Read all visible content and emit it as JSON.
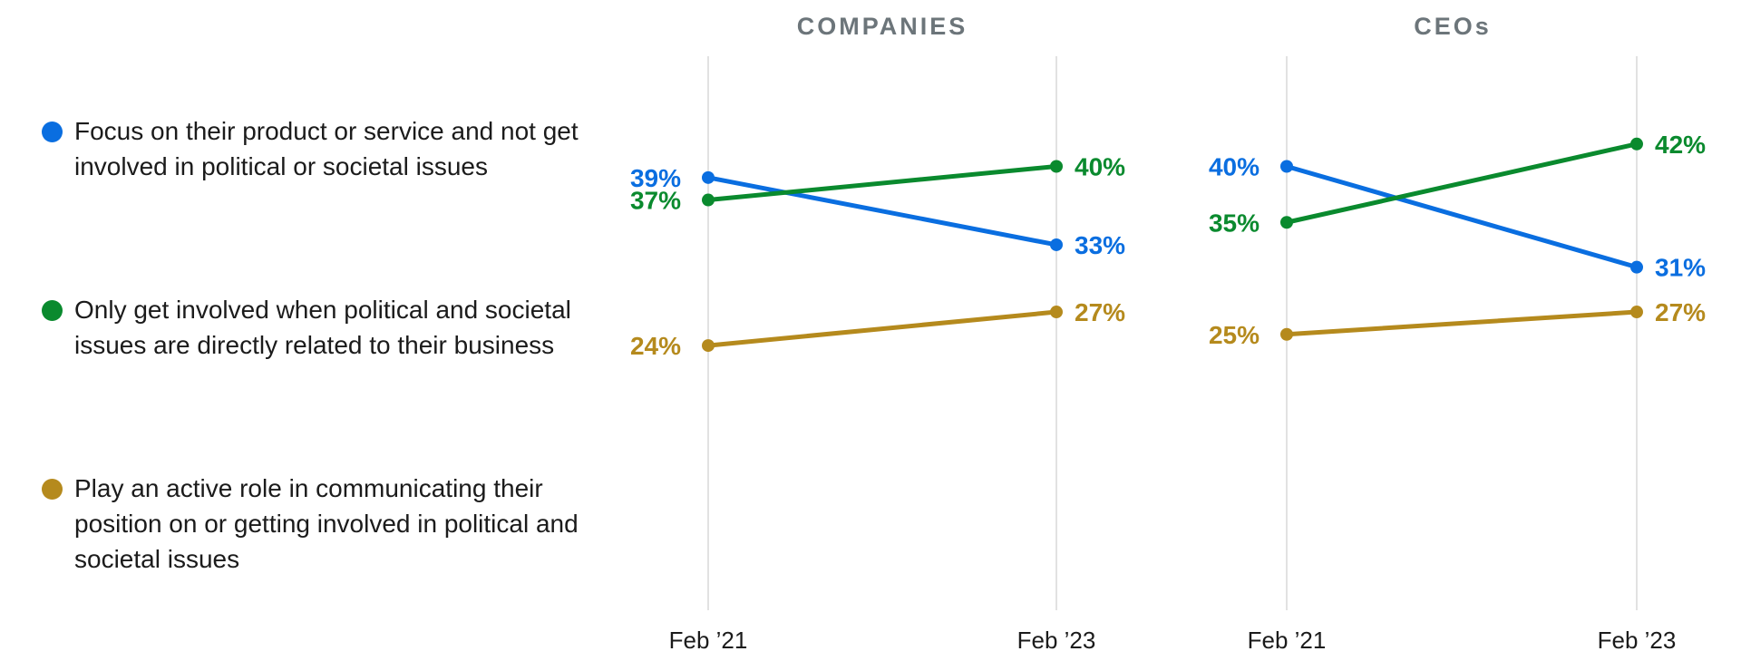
{
  "chart_data": {
    "type": "line",
    "x": [
      "Feb ’21",
      "Feb ’23"
    ],
    "ylim": [
      0,
      50
    ],
    "grid": "vertical lines at each x tick",
    "legend_position": "left",
    "series": [
      {
        "name": "Focus on their product or service and not get involved in political or societal issues",
        "color": "#0a6ee0"
      },
      {
        "name": "Only get involved when political and societal issues are directly related to their business",
        "color": "#0a8a2e"
      },
      {
        "name": "Play an active role in communicating their position on or getting involved in political and societal issues",
        "color": "#b58a1d"
      }
    ],
    "panels": [
      {
        "title": "COMPANIES",
        "series_values": [
          {
            "values": [
              39,
              33
            ],
            "labels": [
              "39%",
              "33%"
            ]
          },
          {
            "values": [
              37,
              40
            ],
            "labels": [
              "37%",
              "40%"
            ]
          },
          {
            "values": [
              24,
              27
            ],
            "labels": [
              "24%",
              "27%"
            ]
          }
        ]
      },
      {
        "title": "CEOs",
        "series_values": [
          {
            "values": [
              40,
              31
            ],
            "labels": [
              "40%",
              "31%"
            ]
          },
          {
            "values": [
              35,
              42
            ],
            "labels": [
              "35%",
              "42%"
            ]
          },
          {
            "values": [
              25,
              27
            ],
            "labels": [
              "25%",
              "27%"
            ]
          }
        ]
      }
    ]
  }
}
